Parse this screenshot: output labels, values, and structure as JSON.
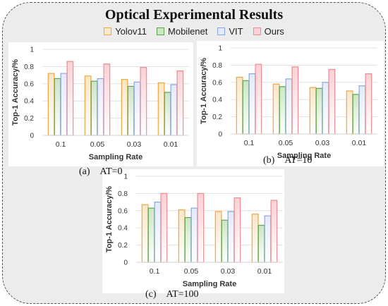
{
  "title": "Optical Experimental Results",
  "colors": {
    "Yolov11": {
      "stroke": "#f2a541",
      "fill": "#fbe6c6"
    },
    "Mobilenet": {
      "stroke": "#5fa34a",
      "fill": "#cde5c3"
    },
    "VIT": {
      "stroke": "#8aa6e8",
      "fill": "#e3eafb"
    },
    "Ours": {
      "stroke": "#ec8c93",
      "fill": "#fad1d4"
    }
  },
  "legend": [
    "Yolov11",
    "Mobilenet",
    "VIT",
    "Ours"
  ],
  "chart_data": [
    {
      "type": "bar",
      "caption_letter": "(a)",
      "caption_text": "AT=0",
      "categories": [
        "0.1",
        "0.05",
        "0.03",
        "0.01"
      ],
      "xlabel": "Sampling Rate",
      "ylabel": "Top-1 Accuracy/%",
      "ylim": [
        0,
        1
      ],
      "yticks": [
        "0",
        "0.2",
        "0.4",
        "0.6",
        "0.8",
        "1"
      ],
      "grid": true,
      "series": [
        {
          "name": "Yolov11",
          "values": [
            0.72,
            0.69,
            0.65,
            0.61
          ]
        },
        {
          "name": "Mobilenet",
          "values": [
            0.66,
            0.63,
            0.57,
            0.5
          ]
        },
        {
          "name": "VIT",
          "values": [
            0.72,
            0.66,
            0.62,
            0.59
          ]
        },
        {
          "name": "Ours",
          "values": [
            0.86,
            0.83,
            0.79,
            0.75
          ]
        }
      ]
    },
    {
      "type": "bar",
      "caption_letter": "(b)",
      "caption_text": "AT=10",
      "categories": [
        "0.1",
        "0.05",
        "0.03",
        "0.01"
      ],
      "xlabel": "Sampling Rate",
      "ylabel": "Top-1 Accuracy/%",
      "ylim": [
        0,
        1
      ],
      "yticks": [
        "0",
        "0.2",
        "0.4",
        "0.6",
        "0.8",
        "1"
      ],
      "grid": true,
      "series": [
        {
          "name": "Yolov11",
          "values": [
            0.66,
            0.58,
            0.54,
            0.5
          ]
        },
        {
          "name": "Mobilenet",
          "values": [
            0.62,
            0.55,
            0.53,
            0.46
          ]
        },
        {
          "name": "VIT",
          "values": [
            0.7,
            0.64,
            0.6,
            0.56
          ]
        },
        {
          "name": "Ours",
          "values": [
            0.81,
            0.78,
            0.75,
            0.7
          ]
        }
      ]
    },
    {
      "type": "bar",
      "caption_letter": "(c)",
      "caption_text": "AT=100",
      "categories": [
        "0.1",
        "0.05",
        "0.03",
        "0.01"
      ],
      "xlabel": "Sampling Rate",
      "ylabel": "Top-1 Accuracy/%",
      "ylim": [
        0,
        1
      ],
      "yticks": [
        "0",
        "0.2",
        "0.4",
        "0.6",
        "0.8",
        "1"
      ],
      "grid": true,
      "series": [
        {
          "name": "Yolov11",
          "values": [
            0.67,
            0.61,
            0.59,
            0.56
          ]
        },
        {
          "name": "Mobilenet",
          "values": [
            0.63,
            0.52,
            0.49,
            0.43
          ]
        },
        {
          "name": "VIT",
          "values": [
            0.7,
            0.63,
            0.59,
            0.54
          ]
        },
        {
          "name": "Ours",
          "values": [
            0.8,
            0.8,
            0.75,
            0.72
          ]
        }
      ]
    }
  ]
}
